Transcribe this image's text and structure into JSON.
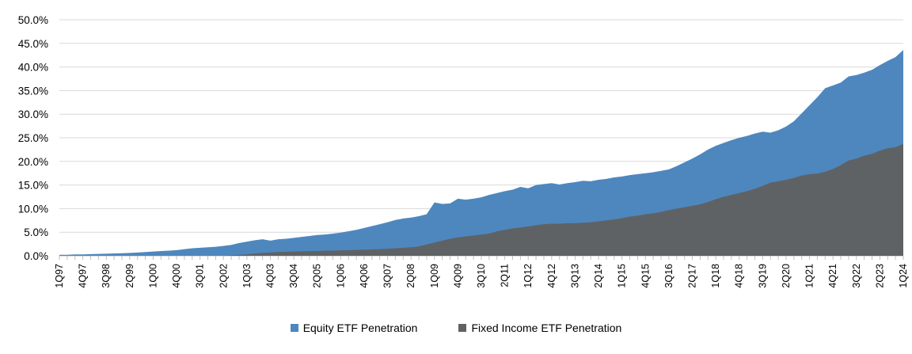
{
  "chart_data": {
    "type": "area",
    "mode": "overlay",
    "title": "",
    "xlabel": "",
    "ylabel": "",
    "ylim": [
      0,
      50
    ],
    "y_tick_labels": [
      "0.0%",
      "5.0%",
      "10.0%",
      "15.0%",
      "20.0%",
      "25.0%",
      "30.0%",
      "35.0%",
      "40.0%",
      "45.0%",
      "50.0%"
    ],
    "x_start": "1Q97",
    "x_end": "1Q24",
    "x_points": 109,
    "x_tick_every_n_points": 3,
    "x_tick_labels": [
      "1Q97",
      "4Q97",
      "3Q98",
      "2Q99",
      "1Q00",
      "4Q00",
      "3Q01",
      "2Q02",
      "1Q03",
      "4Q03",
      "3Q04",
      "2Q05",
      "1Q06",
      "4Q06",
      "3Q07",
      "2Q08",
      "1Q09",
      "4Q09",
      "3Q10",
      "2Q11",
      "1Q12",
      "4Q12",
      "3Q13",
      "2Q14",
      "1Q15",
      "4Q15",
      "3Q16",
      "2Q17",
      "1Q18",
      "4Q18",
      "3Q19",
      "2Q20",
      "1Q21",
      "4Q21",
      "3Q22",
      "2Q23",
      "1Q24"
    ],
    "grid": "horizontal",
    "legend_position": "bottom",
    "series": [
      {
        "name": "Equity ETF Penetration",
        "color": "#4E87BE",
        "values": [
          0.2,
          0.2,
          0.3,
          0.3,
          0.35,
          0.4,
          0.45,
          0.5,
          0.55,
          0.6,
          0.7,
          0.8,
          0.9,
          1.0,
          1.1,
          1.2,
          1.4,
          1.6,
          1.7,
          1.8,
          1.9,
          2.1,
          2.3,
          2.7,
          3.0,
          3.3,
          3.5,
          3.2,
          3.5,
          3.6,
          3.8,
          4.0,
          4.2,
          4.4,
          4.5,
          4.7,
          4.9,
          5.2,
          5.5,
          5.9,
          6.3,
          6.7,
          7.1,
          7.6,
          7.9,
          8.1,
          8.4,
          8.8,
          11.3,
          11.0,
          11.1,
          12.1,
          11.9,
          12.1,
          12.4,
          12.9,
          13.3,
          13.7,
          14.0,
          14.6,
          14.3,
          15.0,
          15.2,
          15.4,
          15.1,
          15.4,
          15.6,
          15.9,
          15.8,
          16.1,
          16.3,
          16.6,
          16.8,
          17.1,
          17.3,
          17.5,
          17.7,
          18.0,
          18.3,
          19.0,
          19.8,
          20.6,
          21.5,
          22.5,
          23.3,
          23.9,
          24.5,
          25.0,
          25.4,
          25.9,
          26.3,
          26.1,
          26.6,
          27.4,
          28.5,
          30.2,
          31.9,
          33.6,
          35.5,
          36.1,
          36.7,
          38.0,
          38.3,
          38.8,
          39.4,
          40.4,
          41.3,
          42.1,
          43.6
        ]
      },
      {
        "name": "Fixed Income ETF Penetration",
        "color": "#5F6264",
        "values": [
          0,
          0,
          0,
          0,
          0,
          0,
          0,
          0,
          0,
          0,
          0,
          0,
          0,
          0,
          0,
          0,
          0,
          0,
          0,
          0,
          0,
          0,
          0.1,
          0.2,
          0.3,
          0.5,
          0.6,
          0.7,
          0.8,
          0.85,
          0.9,
          0.95,
          1.0,
          1.0,
          1.1,
          1.1,
          1.15,
          1.2,
          1.25,
          1.3,
          1.35,
          1.4,
          1.5,
          1.6,
          1.7,
          1.8,
          2.0,
          2.4,
          2.8,
          3.2,
          3.6,
          3.9,
          4.1,
          4.3,
          4.5,
          4.7,
          5.2,
          5.5,
          5.8,
          6.0,
          6.2,
          6.5,
          6.7,
          6.8,
          6.8,
          6.9,
          6.9,
          7.0,
          7.1,
          7.3,
          7.5,
          7.7,
          8.0,
          8.3,
          8.5,
          8.8,
          9.0,
          9.3,
          9.7,
          10.0,
          10.3,
          10.6,
          10.9,
          11.4,
          12.0,
          12.5,
          12.9,
          13.3,
          13.7,
          14.2,
          14.8,
          15.5,
          15.8,
          16.1,
          16.5,
          17.0,
          17.3,
          17.4,
          17.8,
          18.4,
          19.2,
          20.2,
          20.6,
          21.2,
          21.6,
          22.3,
          22.8,
          23.0,
          23.7
        ]
      }
    ],
    "axis_colors": {
      "gridline": "#D9D9D9",
      "axis_line": "#BFBFBF",
      "tick_mark": "#BFBFBF",
      "label_text": "#000000"
    }
  }
}
